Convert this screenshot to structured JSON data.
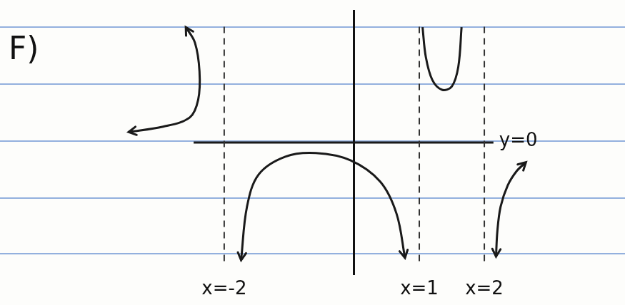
{
  "chart_data": {
    "type": "line",
    "title": "F)",
    "xlim": [
      -3.8,
      2.9
    ],
    "ylim": [
      -4,
      4
    ],
    "tick_labels": false,
    "grid": false,
    "series": [
      {
        "name": "x=-2",
        "color": "#333333",
        "line_style": "dashed",
        "x": [
          -2,
          -2
        ],
        "values": [
          -3.6,
          3.6
        ]
      },
      {
        "name": "x=1",
        "color": "#333333",
        "line_style": "dashed",
        "x": [
          1,
          1
        ],
        "values": [
          -3.6,
          3.6
        ]
      },
      {
        "name": "x=2",
        "color": "#333333",
        "line_style": "dashed",
        "x": [
          2,
          2
        ],
        "values": [
          -3.6,
          3.6
        ]
      },
      {
        "name": "y=0",
        "color": "#1a1a1a",
        "line_style": "solid",
        "x": [
          -2.47,
          2.14
        ],
        "values": [
          0,
          0
        ]
      },
      {
        "color": "#1a1a1a",
        "line_style": "solid",
        "marker": "arrow",
        "x": [
          -3.47,
          -2.94,
          -2.53,
          -2.4,
          -2.38,
          -2.45,
          -2.59
        ],
        "values": [
          0.32,
          0.48,
          0.76,
          1.3,
          2.16,
          3.03,
          3.5
        ]
      },
      {
        "color": "#1a1a1a",
        "line_style": "solid",
        "marker": "arrow",
        "x": [
          -1.74,
          -1.65,
          -1.47,
          -1.06,
          -0.59,
          -0.06,
          0.4,
          0.65,
          0.78
        ],
        "values": [
          -3.57,
          -1.95,
          -0.97,
          -0.43,
          -0.32,
          -0.54,
          -1.19,
          -2.16,
          -3.5
        ]
      },
      {
        "color": "#1a1a1a",
        "line_style": "solid",
        "x": [
          1.05,
          1.1,
          1.2,
          1.35,
          1.5,
          1.6,
          1.65
        ],
        "values": [
          3.5,
          2.6,
          1.9,
          1.6,
          1.7,
          2.3,
          3.5
        ]
      },
      {
        "color": "#1a1a1a",
        "line_style": "solid",
        "marker": "arrow",
        "x": [
          2.64,
          2.5,
          2.36,
          2.25,
          2.2,
          2.18
        ],
        "values": [
          -0.6,
          -0.86,
          -1.3,
          -1.95,
          -2.7,
          -3.46
        ]
      }
    ]
  }
}
